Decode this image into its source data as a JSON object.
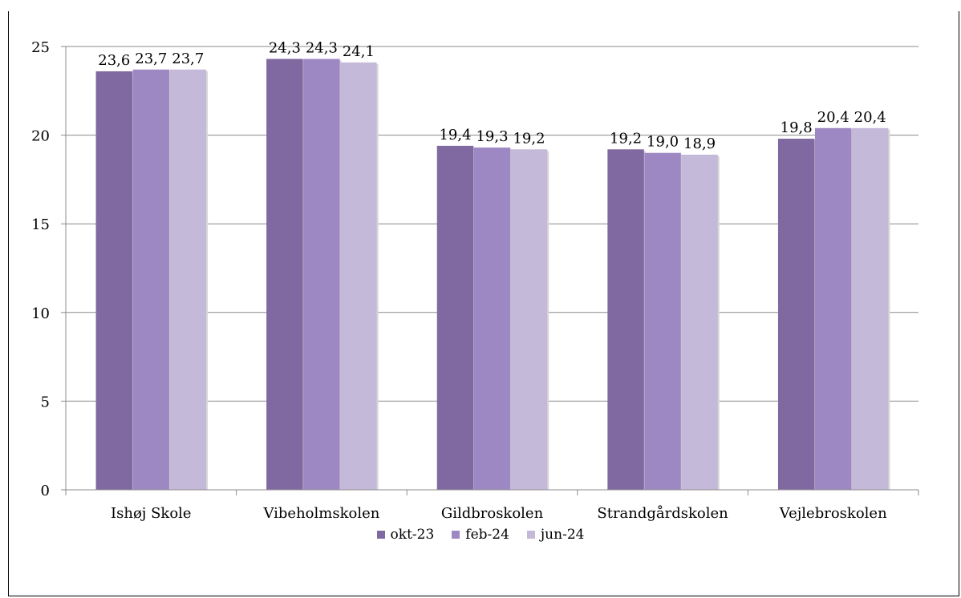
{
  "chart_data": {
    "type": "bar",
    "title": "",
    "categories": [
      "Ishøj Skole",
      "Vibeholmskolen",
      "Gildbroskolen",
      "Strandgårdskolen",
      "Vejlebroskolen"
    ],
    "series": [
      {
        "name": "okt-23",
        "values": [
          23.6,
          24.3,
          19.4,
          19.2,
          19.8
        ],
        "labels": [
          "23,6",
          "24,3",
          "19,4",
          "19,2",
          "19,8"
        ],
        "color": "#8069a0"
      },
      {
        "name": "feb-24",
        "values": [
          23.7,
          24.3,
          19.3,
          19.0,
          20.4
        ],
        "labels": [
          "23,7",
          "24,3",
          "19,3",
          "19,0",
          "20,4"
        ],
        "color": "#9e88c4"
      },
      {
        "name": "jun-24",
        "values": [
          23.7,
          24.1,
          19.2,
          18.9,
          20.4
        ],
        "labels": [
          "23,7",
          "24,1",
          "19,2",
          "18,9",
          "20,4"
        ],
        "color": "#c5b9da"
      }
    ],
    "y_ticks": [
      "0",
      "5",
      "10",
      "15",
      "20",
      "25"
    ],
    "ylim": [
      0,
      25
    ],
    "grid": true,
    "legend_position": "bottom"
  }
}
